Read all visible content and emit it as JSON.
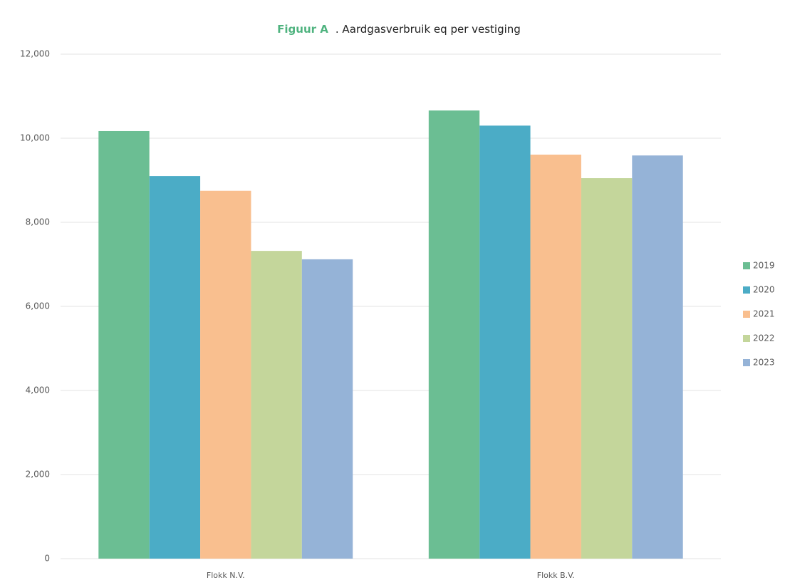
{
  "chart_data": {
    "type": "bar",
    "title_prefix": "Figuur A",
    "title": ". Aardgasverbruik eq per vestiging",
    "categories": [
      "Flokk N.V.",
      "Flokk B.V."
    ],
    "series": [
      {
        "name": "2019",
        "color": "#6bbe93",
        "values": [
          10170,
          10660
        ]
      },
      {
        "name": "2020",
        "color": "#4bacc6",
        "values": [
          9100,
          10300
        ]
      },
      {
        "name": "2021",
        "color": "#f9bf8f",
        "values": [
          8750,
          9610
        ]
      },
      {
        "name": "2022",
        "color": "#c4d69b",
        "values": [
          7320,
          9050
        ]
      },
      {
        "name": "2023",
        "color": "#95b3d7",
        "values": [
          7120,
          9590
        ]
      }
    ],
    "ylim": [
      0,
      12000
    ],
    "yticks": [
      0,
      {
        "value": 2000,
        "label": "2,000"
      },
      {
        "value": 4000,
        "label": "4,000"
      },
      {
        "value": 6000,
        "label": "6,000"
      },
      {
        "value": 8000,
        "label": "8,000"
      },
      {
        "value": 10000,
        "label": "10,000"
      },
      {
        "value": 12000,
        "label": "12,000"
      }
    ],
    "grid": true,
    "legend": "right"
  }
}
